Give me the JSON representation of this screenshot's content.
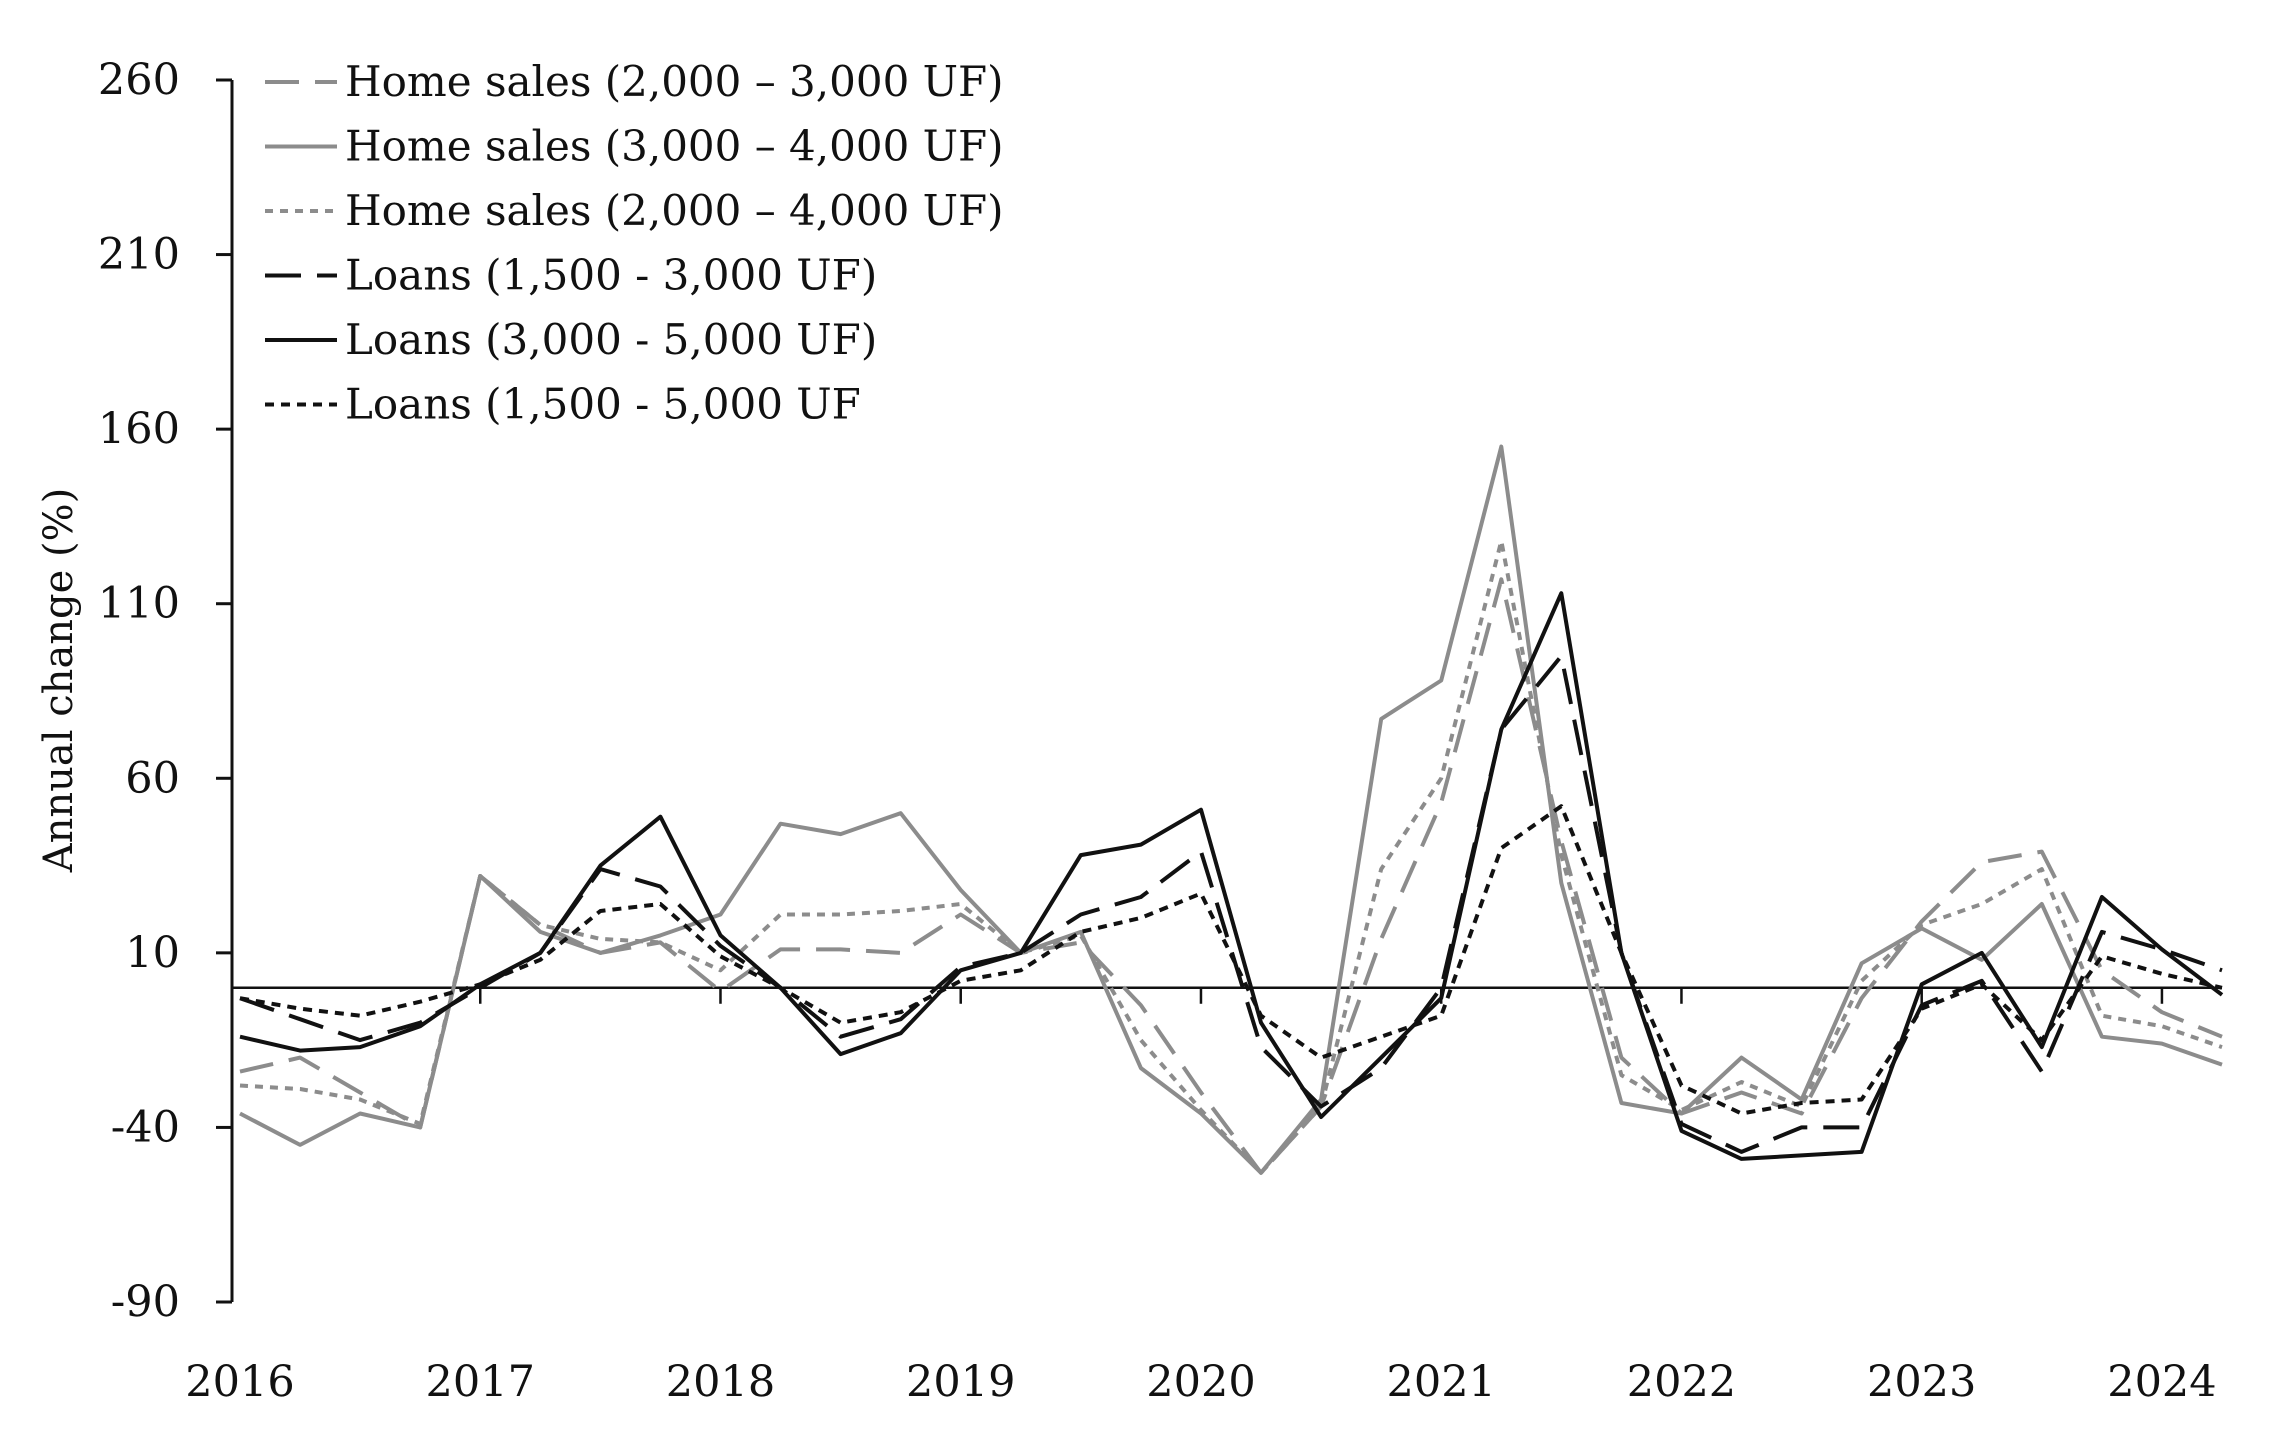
{
  "chart_data": {
    "type": "line",
    "title": "",
    "xlabel": "",
    "ylabel": "Annual change (%)",
    "ylim": [
      -90,
      260
    ],
    "yticks": [
      -90,
      -40,
      10,
      60,
      110,
      160,
      210,
      260
    ],
    "ytick_labels": [
      "-90",
      "-40",
      "10",
      "60",
      "110",
      "160",
      "210",
      "260"
    ],
    "xlim": [
      2016,
      2024.25
    ],
    "xticks": [
      2016,
      2017,
      2018,
      2019,
      2020,
      2021,
      2022,
      2023,
      2024
    ],
    "xtick_labels": [
      "2016",
      "2017",
      "2018",
      "2019",
      "2020",
      "2021",
      "2022",
      "2023",
      "2024"
    ],
    "reference_line": 0,
    "legend_position": "top-left",
    "x": [
      2016.0,
      2016.25,
      2016.5,
      2016.75,
      2017.0,
      2017.25,
      2017.5,
      2017.75,
      2018.0,
      2018.25,
      2018.5,
      2018.75,
      2019.0,
      2019.25,
      2019.5,
      2019.75,
      2020.0,
      2020.25,
      2020.5,
      2020.75,
      2021.0,
      2021.25,
      2021.5,
      2021.75,
      2022.0,
      2022.25,
      2022.5,
      2022.75,
      2023.0,
      2023.25,
      2023.5,
      2023.75,
      2024.0,
      2024.25
    ],
    "series": [
      {
        "name": "Home sales (2,000 – 3,000 UF)",
        "values": [
          -24,
          -20,
          -30,
          -40,
          32,
          18,
          10,
          13,
          -1,
          11,
          11,
          10,
          21,
          10,
          13,
          -5,
          -30,
          -53,
          -34,
          14,
          53,
          117,
          42,
          -20,
          -36,
          -30,
          -36,
          -3,
          19,
          36,
          39,
          5,
          -7,
          -14
        ],
        "color": "#8c8c8c",
        "dash": "34,16",
        "width": 4
      },
      {
        "name": "Home sales (3,000 – 4,000 UF)",
        "values": [
          -36,
          -45,
          -36,
          -40,
          32,
          16,
          10,
          15,
          21,
          47,
          44,
          50,
          28,
          10,
          16,
          -23,
          -36,
          -53,
          -32,
          77,
          88,
          155,
          30,
          -33,
          -36,
          -20,
          -32,
          7,
          17,
          8,
          24,
          -14,
          -16,
          -22
        ],
        "color": "#8c8c8c",
        "dash": "",
        "width": 4
      },
      {
        "name": "Home sales (2,000 – 4,000 UF)",
        "values": [
          -28,
          -29,
          -32,
          -39,
          32,
          18,
          14,
          13,
          5,
          21,
          21,
          22,
          24,
          10,
          15,
          -15,
          -35,
          -53,
          -34,
          34,
          60,
          128,
          38,
          -25,
          -35,
          -27,
          -34,
          2,
          18,
          24,
          34,
          -8,
          -11,
          -17
        ],
        "color": "#8c8c8c",
        "dash": "8,7",
        "width": 4
      },
      {
        "name": "Loans (1,500 - 3,000 UF)",
        "values": [
          -3,
          -9,
          -15,
          -10,
          0,
          10,
          34,
          29,
          12,
          0,
          -14,
          -9,
          6,
          10,
          21,
          26,
          39,
          -17,
          -34,
          -23,
          0,
          74,
          95,
          10,
          -39,
          -47,
          -40,
          -40,
          -5,
          2,
          -24,
          16,
          11,
          5
        ],
        "color": "#111111",
        "dash": "36,16",
        "width": 4
      },
      {
        "name": "Loans (3,000 - 5,000 UF)",
        "values": [
          -14,
          -18,
          -17,
          -11,
          1,
          10,
          35,
          49,
          15,
          0,
          -19,
          -13,
          5,
          10,
          38,
          41,
          51,
          -10,
          -37,
          -20,
          -3,
          74,
          113,
          10,
          -41,
          -49,
          -48,
          -47,
          1,
          10,
          -17,
          26,
          11,
          -2
        ],
        "color": "#111111",
        "dash": "",
        "width": 4
      },
      {
        "name": "Loans (1,500 - 5,000 UF",
        "values": [
          -3,
          -6,
          -8,
          -4,
          1,
          8,
          22,
          24,
          9,
          0,
          -10,
          -7,
          2,
          5,
          16,
          20,
          27,
          -8,
          -20,
          -14,
          -8,
          40,
          52,
          10,
          -28,
          -36,
          -33,
          -32,
          -6,
          1,
          -15,
          9,
          4,
          0
        ],
        "color": "#111111",
        "dash": "9,7",
        "width": 4
      }
    ]
  }
}
